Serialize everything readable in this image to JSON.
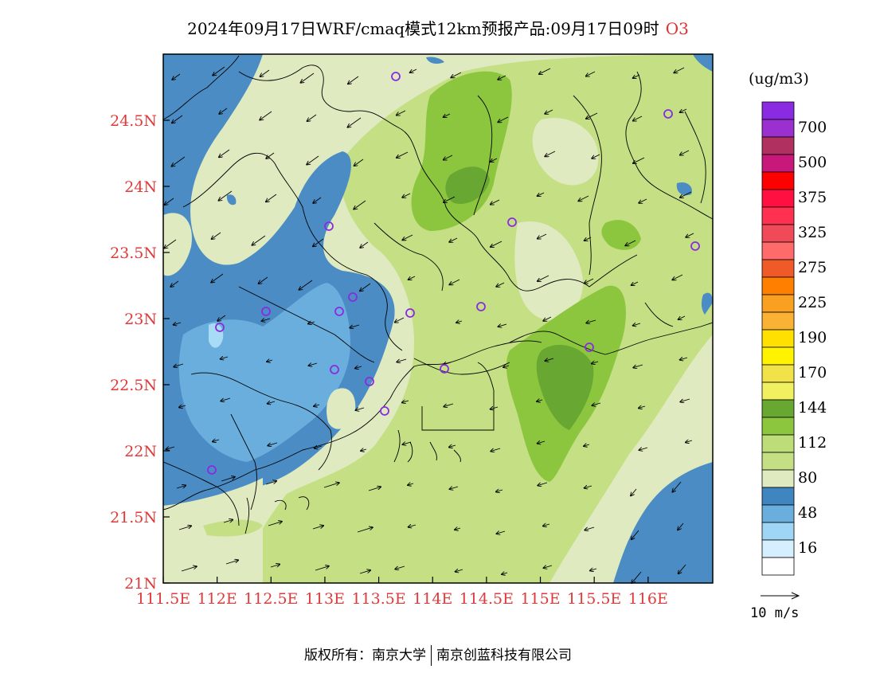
{
  "title": {
    "main": "2024年09月17日WRF/cmaq模式12km预报产品:09月17日09时",
    "species": "O3"
  },
  "legend": {
    "unit": "(ug/m3)",
    "bins": [
      {
        "label": "",
        "color": "#8a2be2"
      },
      {
        "label": "700",
        "color": "#9b30d0"
      },
      {
        "label": "",
        "color": "#b03060"
      },
      {
        "label": "500",
        "color": "#c8187a"
      },
      {
        "label": "",
        "color": "#ff0000"
      },
      {
        "label": "375",
        "color": "#ff1040"
      },
      {
        "label": "",
        "color": "#ff3050"
      },
      {
        "label": "325",
        "color": "#f04a58"
      },
      {
        "label": "",
        "color": "#ff6a6a"
      },
      {
        "label": "275",
        "color": "#f05a28"
      },
      {
        "label": "",
        "color": "#ff8000"
      },
      {
        "label": "225",
        "color": "#f9a020"
      },
      {
        "label": "",
        "color": "#f9b234"
      },
      {
        "label": "190",
        "color": "#ffe000"
      },
      {
        "label": "",
        "color": "#fff300"
      },
      {
        "label": "170",
        "color": "#f2e24a"
      },
      {
        "label": "",
        "color": "#f0f060"
      },
      {
        "label": "144",
        "color": "#68a832"
      },
      {
        "label": "",
        "color": "#8cc63e"
      },
      {
        "label": "112",
        "color": "#bcdd78"
      },
      {
        "label": "",
        "color": "#c4df84"
      },
      {
        "label": "80",
        "color": "#dfeac0"
      },
      {
        "label": "",
        "color": "#3f86c0"
      },
      {
        "label": "48",
        "color": "#6aaedd"
      },
      {
        "label": "",
        "color": "#9fd6f5"
      },
      {
        "label": "16",
        "color": "#d6efff"
      },
      {
        "label": "",
        "color": "#ffffff"
      }
    ]
  },
  "axes": {
    "x_ticks": [
      "111.5E",
      "112E",
      "112.5E",
      "113E",
      "113.5E",
      "114E",
      "114.5E",
      "115E",
      "115.5E",
      "116E"
    ],
    "y_ticks": [
      "21N",
      "21.5N",
      "22N",
      "22.5N",
      "23N",
      "23.5N",
      "24N",
      "24.5N"
    ],
    "lon_range": [
      111.5,
      116.6
    ],
    "lat_range": [
      21.0,
      25.0
    ],
    "tick_color": "#e03a3a"
  },
  "wind_reference": {
    "label": "10 m/s"
  },
  "copyright": {
    "left": "版权所有：南京大学",
    "right": "南京创蓝科技有限公司"
  },
  "field_colors": {
    "deep_blue": "#4a8cc3",
    "mid_blue": "#6aaedd",
    "light_blue": "#a8dbf5",
    "pale_green": "#dfeac0",
    "light_green": "#c4df84",
    "green": "#8cc63e",
    "dark_green": "#68a832",
    "station_ring": "#8a2be2"
  }
}
